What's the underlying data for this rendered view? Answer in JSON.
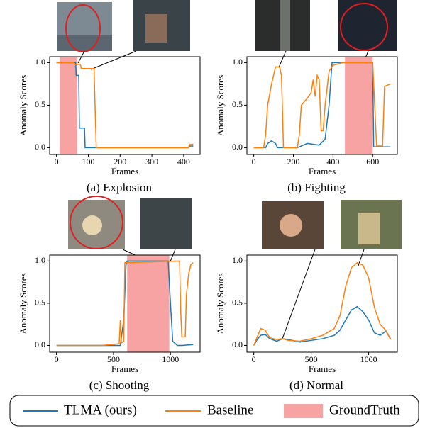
{
  "legend": [
    {
      "name": "TLMA (ours)",
      "color": "#1f77b4"
    },
    {
      "name": "Baseline",
      "color": "#ff7f0e"
    },
    {
      "name": "GroundTruth",
      "color": "#f7a3a3"
    }
  ],
  "chart_data": [
    {
      "type": "line",
      "title": "(a) Explosion",
      "xlabel": "Frames",
      "ylabel": "Anomaly Scores",
      "xlim": [
        -21.5,
        451.5
      ],
      "ylim": [
        -0.08,
        1.07
      ],
      "xticks": [
        0,
        100,
        200,
        300,
        400
      ],
      "yticks": [
        {
          "value": 0,
          "label": "0.0"
        },
        {
          "value": 0.5,
          "label": "0.5"
        },
        {
          "value": 1,
          "label": "1.0"
        }
      ],
      "ground_truth": [
        10,
        65
      ],
      "series": [
        {
          "x": [
            0,
            60,
            62,
            70,
            72,
            88,
            90,
            415,
            418,
            430
          ],
          "values": [
            1,
            1,
            0.85,
            0.85,
            0.23,
            0.23,
            0,
            0,
            0.02,
            0.02
          ]
        },
        {
          "x": [
            0,
            55,
            58,
            75,
            78,
            118,
            125,
            415,
            418,
            430
          ],
          "values": [
            1,
            1,
            0.98,
            0.98,
            0.93,
            0.93,
            0,
            0,
            0.04,
            0.04
          ]
        }
      ]
    },
    {
      "type": "line",
      "title": "(b) Fighting",
      "xlabel": "Frames",
      "ylabel": "Anomaly Scores",
      "xlim": [
        -34.5,
        724.5
      ],
      "ylim": [
        -0.08,
        1.07
      ],
      "xticks": [
        0,
        200,
        400,
        600
      ],
      "yticks": [
        {
          "value": 0,
          "label": "0.0"
        },
        {
          "value": 0.5,
          "label": "0.5"
        },
        {
          "value": 1,
          "label": "1.0"
        }
      ],
      "ground_truth": [
        460,
        600
      ],
      "series": [
        {
          "x": [
            0,
            60,
            70,
            90,
            110,
            120,
            220,
            250,
            270,
            330,
            360,
            380,
            395,
            600,
            605,
            690
          ],
          "values": [
            0,
            0,
            0.05,
            0.08,
            0.05,
            0,
            0,
            0.03,
            0.05,
            0.03,
            0.1,
            0.5,
            1,
            1,
            0.01,
            0.01
          ]
        },
        {
          "x": [
            0,
            50,
            60,
            70,
            90,
            110,
            130,
            140,
            150,
            220,
            230,
            240,
            270,
            290,
            300,
            310,
            320,
            330,
            340,
            350,
            360,
            380,
            400,
            450,
            600,
            620,
            650,
            660,
            690
          ],
          "values": [
            0,
            0,
            0.15,
            0.5,
            0.75,
            0.95,
            0.95,
            0.85,
            0,
            0,
            0.15,
            0.5,
            0.58,
            0.65,
            0.8,
            0.6,
            0.85,
            0.8,
            0.2,
            0.2,
            0.5,
            0.9,
            0.97,
            1,
            1,
            0.02,
            0.02,
            0.72,
            0.75
          ]
        }
      ]
    },
    {
      "type": "line",
      "title": "(c) Shooting",
      "xlabel": "Frames",
      "ylabel": "Anomaly Scores",
      "xlim": [
        -60,
        1260
      ],
      "ylim": [
        -0.08,
        1.07
      ],
      "xticks": [
        0,
        500,
        1000
      ],
      "yticks": [
        {
          "value": 0,
          "label": "0.0"
        },
        {
          "value": 0.5,
          "label": "0.5"
        },
        {
          "value": 1,
          "label": "1.0"
        }
      ],
      "ground_truth": [
        620,
        990
      ],
      "series": [
        {
          "x": [
            0,
            560,
            590,
            610,
            620,
            980,
            1000,
            1020,
            1060,
            1100,
            1200
          ],
          "values": [
            0,
            0,
            0.3,
            0.95,
            1,
            1,
            0.5,
            0.05,
            0,
            0,
            0.01
          ]
        },
        {
          "x": [
            0,
            400,
            550,
            560,
            570,
            590,
            600,
            1080,
            1090,
            1100,
            1130,
            1140,
            1160,
            1180,
            1200
          ],
          "values": [
            0,
            0,
            0.02,
            0.3,
            0.03,
            0.05,
            0.98,
            1,
            0.4,
            0.1,
            0.1,
            0.6,
            0.85,
            0.96,
            0.98
          ]
        }
      ]
    },
    {
      "type": "line",
      "title": "(d) Normal",
      "xlabel": "Frames",
      "ylabel": "Anomaly Scores",
      "xlim": [
        -59.5,
        1249.5
      ],
      "ylim": [
        -0.08,
        1.07
      ],
      "xticks": [
        0,
        500,
        1000
      ],
      "yticks": [
        {
          "value": 0,
          "label": "0.0"
        },
        {
          "value": 0.5,
          "label": "0.5"
        },
        {
          "value": 1,
          "label": "1.0"
        }
      ],
      "series": [
        {
          "x": [
            0,
            30,
            60,
            100,
            140,
            200,
            250,
            300,
            400,
            500,
            600,
            700,
            750,
            800,
            850,
            900,
            950,
            1000,
            1050,
            1100,
            1150,
            1190
          ],
          "values": [
            0,
            0.07,
            0.12,
            0.13,
            0.08,
            0.05,
            0.08,
            0.07,
            0.04,
            0.06,
            0.08,
            0.12,
            0.18,
            0.3,
            0.42,
            0.46,
            0.4,
            0.3,
            0.15,
            0.12,
            0.17,
            0.08
          ]
        },
        {
          "x": [
            0,
            30,
            60,
            100,
            140,
            200,
            250,
            300,
            400,
            500,
            600,
            700,
            750,
            800,
            850,
            900,
            950,
            1000,
            1050,
            1100,
            1150,
            1190
          ],
          "values": [
            0,
            0.1,
            0.2,
            0.18,
            0.09,
            0.07,
            0.08,
            0.06,
            0.05,
            0.08,
            0.12,
            0.2,
            0.35,
            0.7,
            0.92,
            0.98,
            0.95,
            0.8,
            0.45,
            0.25,
            0.18,
            0.07
          ]
        }
      ]
    }
  ]
}
